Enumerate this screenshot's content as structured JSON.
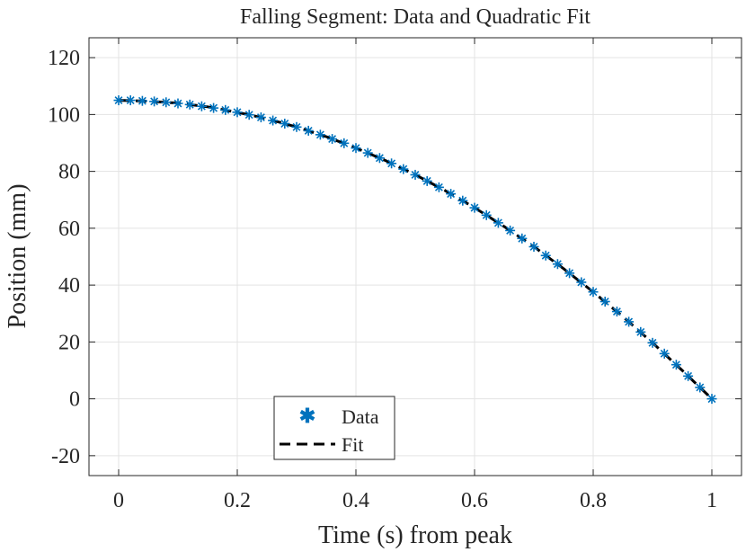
{
  "chart_data": {
    "type": "scatter",
    "title": "Falling Segment: Data and Quadratic Fit",
    "xlabel": "Time (s) from peak",
    "ylabel": "Position (mm)",
    "xlim": [
      -0.05,
      1.05
    ],
    "ylim": [
      -27,
      127
    ],
    "xticks": [
      0,
      0.2,
      0.4,
      0.6,
      0.8,
      1
    ],
    "xtick_labels": [
      "0",
      "0.2",
      "0.4",
      "0.6",
      "0.8",
      "1"
    ],
    "yticks": [
      -20,
      0,
      20,
      40,
      60,
      80,
      100,
      120
    ],
    "ytick_labels": [
      "-20",
      "0",
      "20",
      "40",
      "60",
      "80",
      "100",
      "120"
    ],
    "grid": true,
    "legend_position": "bottom-left",
    "series": [
      {
        "name": "Data",
        "style": "marker",
        "marker": "asterisk",
        "color": "#0072BD",
        "x": [
          0.0,
          0.02,
          0.04,
          0.06,
          0.08,
          0.1,
          0.12,
          0.14,
          0.16,
          0.18,
          0.2,
          0.22,
          0.24,
          0.26,
          0.28,
          0.3,
          0.32,
          0.34,
          0.36,
          0.38,
          0.4,
          0.42,
          0.44,
          0.46,
          0.48,
          0.5,
          0.52,
          0.54,
          0.56,
          0.58,
          0.6,
          0.62,
          0.64,
          0.66,
          0.68,
          0.7,
          0.72,
          0.74,
          0.76,
          0.78,
          0.8,
          0.82,
          0.84,
          0.86,
          0.88,
          0.9,
          0.92,
          0.94,
          0.96,
          0.98,
          1.0
        ],
        "y": [
          105.0,
          105.0,
          104.8,
          104.6,
          104.3,
          103.9,
          103.5,
          102.9,
          102.3,
          101.6,
          100.8,
          99.9,
          99.0,
          97.9,
          96.8,
          95.6,
          94.3,
          92.9,
          91.4,
          89.9,
          88.2,
          86.5,
          84.7,
          82.8,
          80.8,
          78.8,
          76.6,
          74.4,
          72.1,
          69.7,
          67.2,
          64.6,
          61.9,
          59.2,
          56.4,
          53.5,
          50.4,
          47.4,
          44.2,
          41.0,
          37.6,
          34.2,
          30.7,
          27.1,
          23.5,
          19.7,
          15.9,
          12.0,
          8.0,
          4.0,
          0.0
        ]
      },
      {
        "name": "Fit",
        "style": "dashed-line",
        "color": "#000000",
        "x": [
          0.0,
          0.05,
          0.1,
          0.15,
          0.2,
          0.25,
          0.3,
          0.35,
          0.4,
          0.45,
          0.5,
          0.55,
          0.6,
          0.65,
          0.7,
          0.75,
          0.8,
          0.85,
          0.9,
          0.95,
          1.0
        ],
        "y": [
          105.0,
          104.7,
          104.0,
          102.7,
          100.8,
          98.5,
          95.6,
          92.2,
          88.2,
          83.8,
          78.8,
          73.3,
          67.2,
          60.6,
          53.5,
          45.8,
          37.6,
          28.9,
          19.7,
          10.0,
          0.0
        ]
      }
    ]
  }
}
